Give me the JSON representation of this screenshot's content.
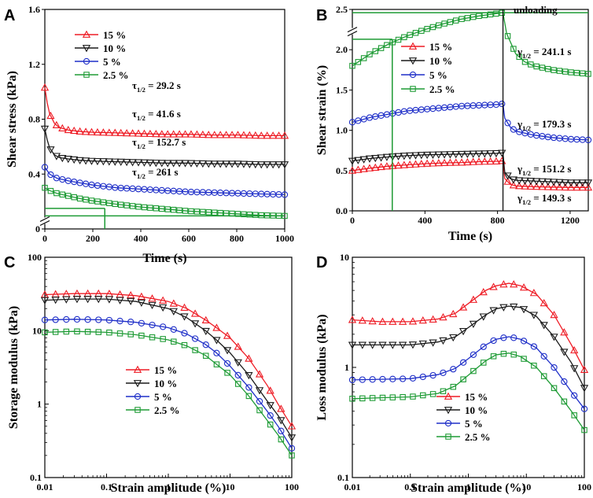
{
  "chart_data": [
    {
      "panel": "A",
      "type": "line",
      "xlabel": "Time (s)",
      "ylabel": "Shear stress (kPa)",
      "xlim": [
        0,
        1000
      ],
      "ylim": [
        0,
        1.6
      ],
      "xticks": [
        "0",
        "200",
        "400",
        "600",
        "800",
        "1000"
      ],
      "yticks": [
        "0",
        "0.4",
        "0.8",
        "1.2",
        "1.6"
      ],
      "legend": [
        "15 %",
        "10 %",
        "5 %",
        "2.5 %"
      ],
      "series": [
        {
          "name": "15 %",
          "color": "#ee1c25",
          "marker": "triangle-up",
          "x": [
            0,
            10,
            20,
            40,
            60,
            100,
            150,
            200,
            300,
            400,
            500,
            600,
            700,
            800,
            900,
            1000
          ],
          "y": [
            1.03,
            0.92,
            0.84,
            0.77,
            0.74,
            0.72,
            0.71,
            0.705,
            0.7,
            0.695,
            0.69,
            0.69,
            0.685,
            0.685,
            0.68,
            0.68
          ]
        },
        {
          "name": "10 %",
          "color": "#1a1a1a",
          "marker": "triangle-down",
          "x": [
            0,
            10,
            20,
            40,
            60,
            100,
            150,
            200,
            300,
            400,
            500,
            600,
            700,
            800,
            900,
            1000
          ],
          "y": [
            0.73,
            0.65,
            0.59,
            0.54,
            0.52,
            0.51,
            0.5,
            0.495,
            0.49,
            0.485,
            0.48,
            0.48,
            0.475,
            0.475,
            0.47,
            0.47
          ]
        },
        {
          "name": "5 %",
          "color": "#1f2fc8",
          "marker": "circle",
          "x": [
            0,
            20,
            50,
            100,
            150,
            200,
            300,
            400,
            500,
            600,
            700,
            800,
            900,
            1000
          ],
          "y": [
            0.45,
            0.4,
            0.37,
            0.35,
            0.335,
            0.32,
            0.3,
            0.29,
            0.28,
            0.27,
            0.265,
            0.26,
            0.255,
            0.25
          ]
        },
        {
          "name": "2.5 %",
          "color": "#1e9b35",
          "marker": "square",
          "x": [
            0,
            20,
            50,
            100,
            150,
            200,
            300,
            400,
            500,
            600,
            700,
            800,
            900,
            1000
          ],
          "y": [
            0.3,
            0.28,
            0.26,
            0.24,
            0.22,
            0.205,
            0.18,
            0.16,
            0.145,
            0.13,
            0.12,
            0.11,
            0.1,
            0.095
          ]
        }
      ],
      "annotations": [
        {
          "main": "τ",
          "sub": "1/2",
          "text": " = 29.2 s"
        },
        {
          "main": "τ",
          "sub": "1/2",
          "text": " = 41.6 s"
        },
        {
          "main": "τ",
          "sub": "1/2",
          "text": " = 152.7 s"
        },
        {
          "main": "τ",
          "sub": "1/2",
          "text": " = 261 s"
        }
      ],
      "half_life_marker": {
        "x": 250,
        "y": 0.15
      }
    },
    {
      "panel": "B",
      "type": "line",
      "xlabel": "Time (s)",
      "ylabel": "Shear strain (%)",
      "xlim": [
        0,
        1300
      ],
      "ylim": [
        0,
        2.5
      ],
      "xticks": [
        "0",
        "400",
        "800",
        "1200"
      ],
      "yticks": [
        "0.0",
        "0.5",
        "1.0",
        "1.5",
        "2.0",
        "2.5"
      ],
      "legend": [
        "15 %",
        "10 %",
        "5 %",
        "2.5 %"
      ],
      "unloading_label": "unloading",
      "unloading_time": 830,
      "series": [
        {
          "name": "15 %",
          "color": "#ee1c25",
          "marker": "triangle-up",
          "x": [
            0,
            100,
            200,
            300,
            400,
            500,
            600,
            700,
            800,
            830,
            840,
            870,
            900,
            1000,
            1100,
            1200,
            1300
          ],
          "y": [
            0.5,
            0.53,
            0.555,
            0.57,
            0.585,
            0.595,
            0.6,
            0.61,
            0.615,
            0.62,
            0.4,
            0.33,
            0.31,
            0.3,
            0.295,
            0.29,
            0.29
          ]
        },
        {
          "name": "10 %",
          "color": "#1a1a1a",
          "marker": "triangle-down",
          "x": [
            0,
            100,
            200,
            300,
            400,
            500,
            600,
            700,
            800,
            830,
            840,
            870,
            900,
            1000,
            1100,
            1200,
            1300
          ],
          "y": [
            0.62,
            0.65,
            0.67,
            0.685,
            0.695,
            0.7,
            0.705,
            0.71,
            0.715,
            0.72,
            0.48,
            0.4,
            0.38,
            0.37,
            0.36,
            0.35,
            0.35
          ]
        },
        {
          "name": "5 %",
          "color": "#1f2fc8",
          "marker": "circle",
          "x": [
            0,
            100,
            200,
            300,
            400,
            500,
            600,
            700,
            800,
            830,
            840,
            870,
            900,
            1000,
            1100,
            1200,
            1300
          ],
          "y": [
            1.1,
            1.16,
            1.2,
            1.24,
            1.26,
            1.28,
            1.3,
            1.31,
            1.32,
            1.33,
            1.15,
            1.04,
            0.99,
            0.94,
            0.91,
            0.89,
            0.88
          ]
        },
        {
          "name": "2.5 %",
          "color": "#1e9b35",
          "marker": "square",
          "x": [
            0,
            100,
            200,
            300,
            400,
            500,
            600,
            700,
            800,
            830,
            850,
            900,
            950,
            1000,
            1100,
            1200,
            1300
          ],
          "y": [
            1.8,
            1.95,
            2.07,
            2.17,
            2.25,
            2.32,
            2.38,
            2.42,
            2.45,
            2.46,
            2.2,
            1.95,
            1.85,
            1.8,
            1.75,
            1.72,
            1.7
          ]
        }
      ],
      "annotations": [
        {
          "main": "γ",
          "sub": "1/2",
          "text": " = 241.1 s"
        },
        {
          "main": "γ",
          "sub": "1/2",
          "text": " = 179.3 s"
        },
        {
          "main": "γ",
          "sub": "1/2",
          "text": " = 151.2 s"
        },
        {
          "main": "γ",
          "sub": "1/2",
          "text": " = 149.3 s"
        }
      ],
      "half_life_marker": {
        "x": 220,
        "y": 2.13
      }
    },
    {
      "panel": "C",
      "type": "line",
      "scale": "log-log",
      "xlabel": "Strain amplitude (%)",
      "ylabel": "Storage modulus (kPa)",
      "xlim": [
        0.01,
        100
      ],
      "ylim": [
        0.1,
        100
      ],
      "xticks": [
        "0.01",
        "0.1",
        "1",
        "10",
        "100"
      ],
      "yticks": [
        "0.1",
        "1",
        "10",
        "100"
      ],
      "legend": [
        "15 %",
        "10 %",
        "5 %",
        "2.5 %"
      ],
      "series": [
        {
          "name": "15 %",
          "color": "#ee1c25",
          "marker": "triangle-up",
          "x": [
            0.01,
            0.03,
            0.1,
            0.3,
            1,
            2,
            4,
            6,
            10,
            20,
            40,
            60,
            100
          ],
          "y": [
            31,
            32,
            32,
            30,
            25,
            20,
            14,
            11,
            8,
            4.2,
            1.8,
            1.0,
            0.5
          ]
        },
        {
          "name": "10 %",
          "color": "#1a1a1a",
          "marker": "triangle-down",
          "x": [
            0.01,
            0.03,
            0.1,
            0.3,
            1,
            2,
            4,
            6,
            10,
            20,
            40,
            60,
            100
          ],
          "y": [
            26,
            27,
            27,
            25,
            20,
            15,
            10,
            7.5,
            5,
            2.5,
            1.1,
            0.7,
            0.35
          ]
        },
        {
          "name": "5 %",
          "color": "#1f2fc8",
          "marker": "circle",
          "x": [
            0.01,
            0.03,
            0.1,
            0.3,
            1,
            2,
            4,
            6,
            10,
            20,
            40,
            60,
            100
          ],
          "y": [
            14,
            14.3,
            14,
            13,
            11,
            9,
            6.5,
            5,
            3.3,
            1.7,
            0.8,
            0.5,
            0.25
          ]
        },
        {
          "name": "2.5 %",
          "color": "#1e9b35",
          "marker": "square",
          "x": [
            0.01,
            0.03,
            0.1,
            0.3,
            1,
            2,
            4,
            6,
            10,
            20,
            40,
            60,
            100
          ],
          "y": [
            9.5,
            9.8,
            9.5,
            8.8,
            7.5,
            6.2,
            4.6,
            3.5,
            2.5,
            1.3,
            0.6,
            0.38,
            0.2
          ]
        }
      ]
    },
    {
      "panel": "D",
      "type": "line",
      "scale": "log-log",
      "xlabel": "Strain amplitude (%)",
      "ylabel": "Loss modulus (kPa)",
      "xlim": [
        0.01,
        100
      ],
      "ylim": [
        0.1,
        10
      ],
      "xticks": [
        "0.01",
        "0.1",
        "1",
        "10",
        "100"
      ],
      "yticks": [
        "0.1",
        "1",
        "10"
      ],
      "legend": [
        "15 %",
        "10 %",
        "5 %",
        "2.5 %"
      ],
      "series": [
        {
          "name": "15 %",
          "color": "#ee1c25",
          "marker": "triangle-up",
          "x": [
            0.01,
            0.03,
            0.1,
            0.3,
            0.6,
            1,
            2,
            3,
            5,
            8,
            15,
            30,
            60,
            100
          ],
          "y": [
            2.7,
            2.6,
            2.6,
            2.75,
            3.1,
            3.8,
            5.0,
            5.5,
            5.8,
            5.5,
            4.6,
            3.0,
            1.6,
            0.95
          ]
        },
        {
          "name": "10 %",
          "color": "#1a1a1a",
          "marker": "triangle-down",
          "x": [
            0.01,
            0.03,
            0.1,
            0.3,
            0.6,
            1,
            2,
            3,
            5,
            8,
            15,
            30,
            60,
            100
          ],
          "y": [
            1.6,
            1.6,
            1.6,
            1.7,
            1.9,
            2.3,
            3.0,
            3.4,
            3.6,
            3.5,
            2.9,
            1.9,
            1.1,
            0.65
          ]
        },
        {
          "name": "5 %",
          "color": "#1f2fc8",
          "marker": "circle",
          "x": [
            0.01,
            0.03,
            0.1,
            0.3,
            0.6,
            1,
            2,
            3,
            5,
            8,
            15,
            30,
            60,
            100
          ],
          "y": [
            0.77,
            0.78,
            0.79,
            0.86,
            0.98,
            1.2,
            1.6,
            1.8,
            1.9,
            1.8,
            1.5,
            1.0,
            0.6,
            0.42
          ]
        },
        {
          "name": "2.5 %",
          "color": "#1e9b35",
          "marker": "square",
          "x": [
            0.01,
            0.03,
            0.1,
            0.3,
            0.6,
            1,
            2,
            3,
            5,
            8,
            15,
            30,
            60,
            100
          ],
          "y": [
            0.52,
            0.53,
            0.54,
            0.58,
            0.68,
            0.85,
            1.15,
            1.3,
            1.35,
            1.25,
            1.0,
            0.65,
            0.4,
            0.27
          ]
        }
      ]
    }
  ]
}
